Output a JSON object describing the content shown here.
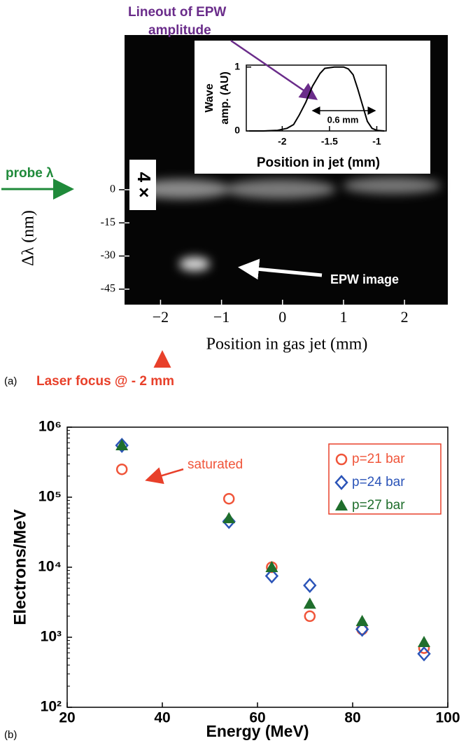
{
  "chart_data": [
    {
      "type": "image",
      "panel_label": "(a)",
      "xlabel": "Position in gas jet (mm)",
      "ylabel": "Δλ (nm)",
      "xlim": [
        -2.59,
        2.71
      ],
      "xticks": [
        {
          "value": -2,
          "label": "−2"
        },
        {
          "value": -1,
          "label": "−1"
        },
        0,
        1,
        2
      ],
      "ylim": [
        -52,
        70
      ],
      "yticks": [
        0,
        -15,
        -30,
        -45
      ],
      "annotations": {
        "probe": "probe λ",
        "scale": "4 ×",
        "epw_image": "EPW image",
        "laser_focus": "Laser focus @ - 2 mm"
      }
    },
    {
      "type": "line",
      "title_lines": [
        "Lineout of EPW",
        "amplitude"
      ],
      "xlabel": "Position in jet (mm)",
      "ylabel_lines": [
        "Wave",
        "amp. (AU)"
      ],
      "width_label": "0.6 mm",
      "color": "#000000",
      "xlim": [
        -2.38,
        -0.9
      ],
      "xticks": [
        -2,
        -1.5,
        -1
      ],
      "ylim": [
        0,
        1.03
      ],
      "yticks": [
        0,
        1
      ],
      "x": [
        -2.35,
        -2.2,
        -2.05,
        -1.95,
        -1.88,
        -1.82,
        -1.75,
        -1.68,
        -1.6,
        -1.55,
        -1.45,
        -1.35,
        -1.3,
        -1.25,
        -1.2,
        -1.15,
        -1.1,
        -1.05,
        -1.0,
        -0.92
      ],
      "values": [
        0.0,
        0.0,
        0.01,
        0.04,
        0.1,
        0.25,
        0.45,
        0.7,
        0.9,
        0.98,
        1.0,
        1.0,
        0.97,
        0.88,
        0.65,
        0.4,
        0.15,
        0.04,
        0.01,
        0.0
      ]
    },
    {
      "type": "scatter",
      "panel_label": "(b)",
      "xlabel": "Energy (MeV)",
      "ylabel": "Electrons/MeV",
      "log_y": true,
      "annotation": "saturated",
      "legend": "upper right",
      "xlim": [
        20,
        100
      ],
      "xticks": [
        20,
        40,
        60,
        80,
        100
      ],
      "ylim": [
        100,
        1000000
      ],
      "yticks": [
        {
          "value": 100,
          "label": "10²"
        },
        {
          "value": 1000,
          "label": "10³"
        },
        {
          "value": 10000,
          "label": "10⁴"
        },
        {
          "value": 100000,
          "label": "10⁵"
        },
        {
          "value": 1000000,
          "label": "10⁶"
        }
      ],
      "series": [
        {
          "name": "p=21 bar",
          "color": "#f0553a",
          "marker": "circle",
          "x": [
            31.5,
            54,
            63,
            71,
            82,
            95
          ],
          "values": [
            250000,
            95000,
            10000,
            2000,
            1300,
            700
          ]
        },
        {
          "name": "p=24 bar",
          "color": "#2b54b8",
          "marker": "diamond",
          "x": [
            31.5,
            54,
            63,
            71,
            82,
            95
          ],
          "values": [
            550000,
            45000,
            7500,
            5500,
            1300,
            580
          ]
        },
        {
          "name": "p=27 bar",
          "color": "#1f6e2c",
          "marker": "triangle",
          "x": [
            31.5,
            54,
            63,
            71,
            82,
            95
          ],
          "values": [
            550000,
            50000,
            10000,
            3000,
            1700,
            850
          ]
        }
      ]
    }
  ]
}
